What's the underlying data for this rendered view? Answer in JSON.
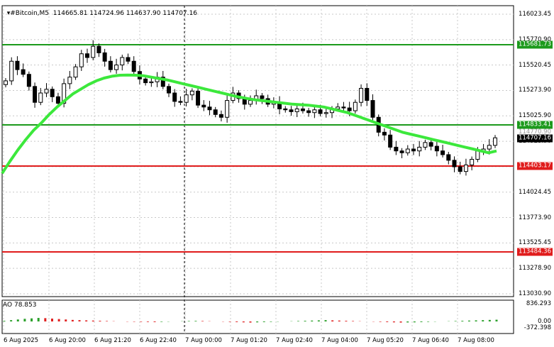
{
  "header": {
    "symbol": "#Bitcoin,M5",
    "ohlc": "114665.81 114724.96 114637.90 114707.16"
  },
  "indicator": {
    "name": "AO",
    "value": "78.853",
    "scale_top": "836.293",
    "scale_zero": "0.00",
    "scale_bottom": "-372.398"
  },
  "y_axis_labels": [
    "116023.45",
    "115770.90",
    "115520.45",
    "115273.90",
    "115025.90",
    "114523.90",
    "114275.90",
    "114024.45",
    "113773.90",
    "113525.45",
    "113278.90",
    "113030.90"
  ],
  "price_lines": [
    {
      "label": "115681.73",
      "color": "#1c9a1c",
      "bg": "#1c9a1c",
      "text": "#fff"
    },
    {
      "label": "114833.41",
      "color": "#1c9a1c",
      "bg": "#1c9a1c",
      "text": "#fff"
    },
    {
      "label": "114403.17",
      "color": "#e01c1c",
      "bg": "#e01c1c",
      "text": "#fff"
    },
    {
      "label": "113484.36",
      "color": "#e01c1c",
      "bg": "#e01c1c",
      "text": "#fff"
    }
  ],
  "current_price": {
    "label": "114707.16",
    "faded": "114770.90"
  },
  "x_axis_labels": [
    "6 Aug 2025",
    "6 Aug 20:00",
    "6 Aug 21:20",
    "6 Aug 22:40",
    "7 Aug 00:00",
    "7 Aug 01:20",
    "7 Aug 02:40",
    "7 Aug 04:00",
    "7 Aug 05:20",
    "7 Aug 06:40",
    "7 Aug 08:00"
  ],
  "colors": {
    "ma": "#3ce83c",
    "candle": "#000000",
    "grid": "#c8c8c8",
    "ao_up": "#2aa02a",
    "ao_down": "#e02020"
  },
  "chart_data": {
    "type": "line",
    "y_range": [
      113030.9,
      116023.45
    ],
    "close": [
      115310,
      115520,
      115430,
      115380,
      115250,
      115080,
      115180,
      115220,
      115140,
      115070,
      115280,
      115350,
      115460,
      115600,
      115560,
      115680,
      115610,
      115520,
      115430,
      115480,
      115560,
      115520,
      115410,
      115330,
      115290,
      115300,
      115350,
      115250,
      115180,
      115090,
      115080,
      115160,
      115200,
      115050,
      115030,
      115000,
      114950,
      114920,
      115100,
      115180,
      115120,
      115060,
      115100,
      115150,
      115120,
      115060,
      115080,
      115010,
      115000,
      114980,
      115010,
      114990,
      114970,
      115000,
      114960,
      114970,
      115010,
      115030,
      115020,
      114990,
      115080,
      115230,
      115100,
      114920,
      114760,
      114730,
      114600,
      114560,
      114540,
      114580,
      114560,
      114600,
      114650,
      114610,
      114560,
      114520,
      114460,
      114390,
      114340,
      114410,
      114470,
      114560,
      114580,
      114620,
      114700
    ],
    "ma": [
      114320,
      114450,
      114570,
      114680,
      114780,
      114860,
      114950,
      115030,
      115100,
      115170,
      115220,
      115270,
      115310,
      115340,
      115360,
      115370,
      115372,
      115370,
      115365,
      115350,
      115335,
      115320,
      115300,
      115280,
      115260,
      115240,
      115220,
      115200,
      115180,
      115160,
      115140,
      115125,
      115110,
      115100,
      115090,
      115080,
      115070,
      115060,
      115055,
      115050,
      115040,
      115030,
      115010,
      114990,
      114970,
      114940,
      114910,
      114880,
      114850,
      114820,
      114790,
      114760,
      114740,
      114720,
      114700,
      114680,
      114660,
      114640,
      114620,
      114600,
      114580,
      114560,
      114540,
      114560
    ],
    "ao": [
      30,
      60,
      90,
      120,
      140,
      160,
      150,
      130,
      110,
      90,
      70,
      60,
      50,
      40,
      30,
      20,
      10,
      0,
      -10,
      -15,
      -20,
      -25,
      -30,
      -20,
      -10,
      0,
      10,
      20,
      25,
      20,
      10,
      0,
      -10,
      -20,
      -30,
      -40,
      -50,
      -40,
      -30,
      -20,
      -10,
      0,
      10,
      20,
      30,
      40,
      50,
      60,
      50,
      40,
      30,
      20,
      10,
      0,
      -10,
      -20,
      -30,
      -40,
      -50,
      -45,
      -40,
      -30,
      -20,
      -10,
      0,
      10,
      20,
      30,
      40,
      50,
      60,
      70,
      78.853
    ]
  }
}
